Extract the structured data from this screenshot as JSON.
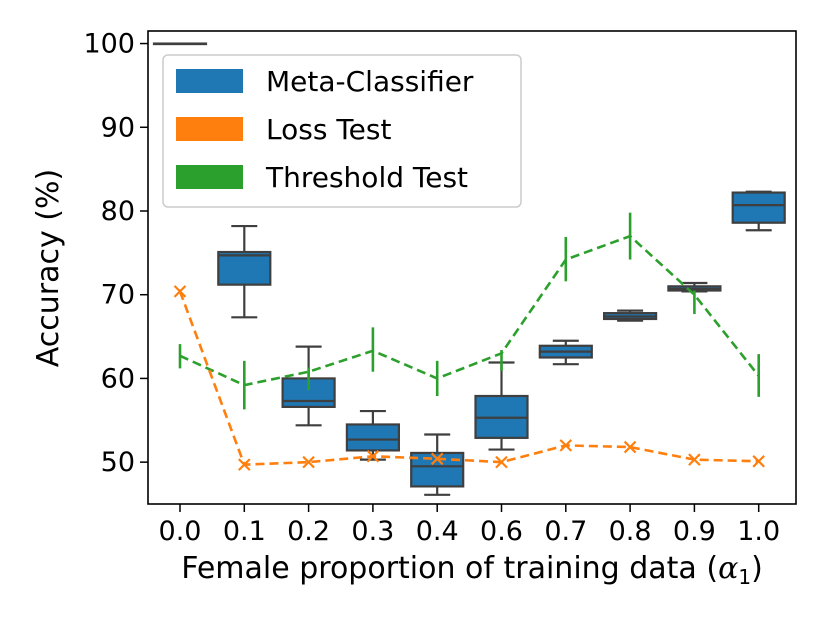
{
  "chart_data": {
    "type": "box+line",
    "xlabel": "Female proportion of training data (",
    "xlabel_symbol": "α",
    "xlabel_subscript": "1",
    "xlabel_close": ")",
    "ylabel": "Accuracy (%)",
    "ylim": [
      45,
      101.5
    ],
    "yticks": [
      50,
      60,
      70,
      80,
      90,
      100
    ],
    "categories": [
      "0.0",
      "0.1",
      "0.2",
      "0.3",
      "0.4",
      "0.6",
      "0.7",
      "0.8",
      "0.9",
      "1.0"
    ],
    "legend": [
      {
        "label": "Meta-Classifier",
        "color": "#1f77b4"
      },
      {
        "label": "Loss Test",
        "color": "#ff7f0e"
      },
      {
        "label": "Threshold Test",
        "color": "#2ca02c"
      }
    ],
    "legend_position": "top-left",
    "boxes": [
      {
        "category": "0.0",
        "min": 100,
        "q1": 100,
        "median": 100,
        "q3": 100,
        "max": 100
      },
      {
        "category": "0.1",
        "min": 67.3,
        "q1": 71.2,
        "median": 74.7,
        "q3": 75.1,
        "max": 78.2
      },
      {
        "category": "0.2",
        "min": 54.4,
        "q1": 56.6,
        "median": 57.3,
        "q3": 60.0,
        "max": 63.8
      },
      {
        "category": "0.3",
        "min": 50.3,
        "q1": 51.4,
        "median": 52.7,
        "q3": 54.5,
        "max": 56.1
      },
      {
        "category": "0.4",
        "min": 46.1,
        "q1": 47.1,
        "median": 49.5,
        "q3": 51.1,
        "max": 53.3
      },
      {
        "category": "0.6",
        "min": 51.5,
        "q1": 52.9,
        "median": 55.3,
        "q3": 57.9,
        "max": 61.9
      },
      {
        "category": "0.7",
        "min": 61.7,
        "q1": 62.5,
        "median": 63.2,
        "q3": 63.9,
        "max": 64.5
      },
      {
        "category": "0.8",
        "min": 66.9,
        "q1": 67.1,
        "median": 67.4,
        "q3": 67.8,
        "max": 68.1
      },
      {
        "category": "0.9",
        "min": 70.4,
        "q1": 70.5,
        "median": 70.7,
        "q3": 71.0,
        "max": 71.4
      },
      {
        "category": "1.0",
        "min": 77.7,
        "q1": 78.6,
        "median": 80.7,
        "q3": 82.2,
        "max": 82.3
      }
    ],
    "series": [
      {
        "name": "Loss Test",
        "color": "#ff7f0e",
        "marker": "x",
        "values": [
          70.4,
          49.7,
          50.0,
          50.7,
          50.4,
          50.0,
          52.0,
          51.8,
          50.3,
          50.1
        ]
      },
      {
        "name": "Threshold Test",
        "color": "#2ca02c",
        "marker": "errorbar",
        "values": [
          62.7,
          59.2,
          60.8,
          63.3,
          60.0,
          63.0,
          74.2,
          77.0,
          70.0,
          60.3
        ],
        "err_low": [
          61.2,
          56.3,
          58.6,
          60.8,
          57.9,
          60.9,
          71.6,
          74.2,
          67.7,
          57.8
        ],
        "err_high": [
          64.1,
          62.1,
          61.3,
          66.1,
          62.1,
          63.4,
          76.9,
          79.8,
          70.5,
          62.9
        ]
      }
    ]
  }
}
